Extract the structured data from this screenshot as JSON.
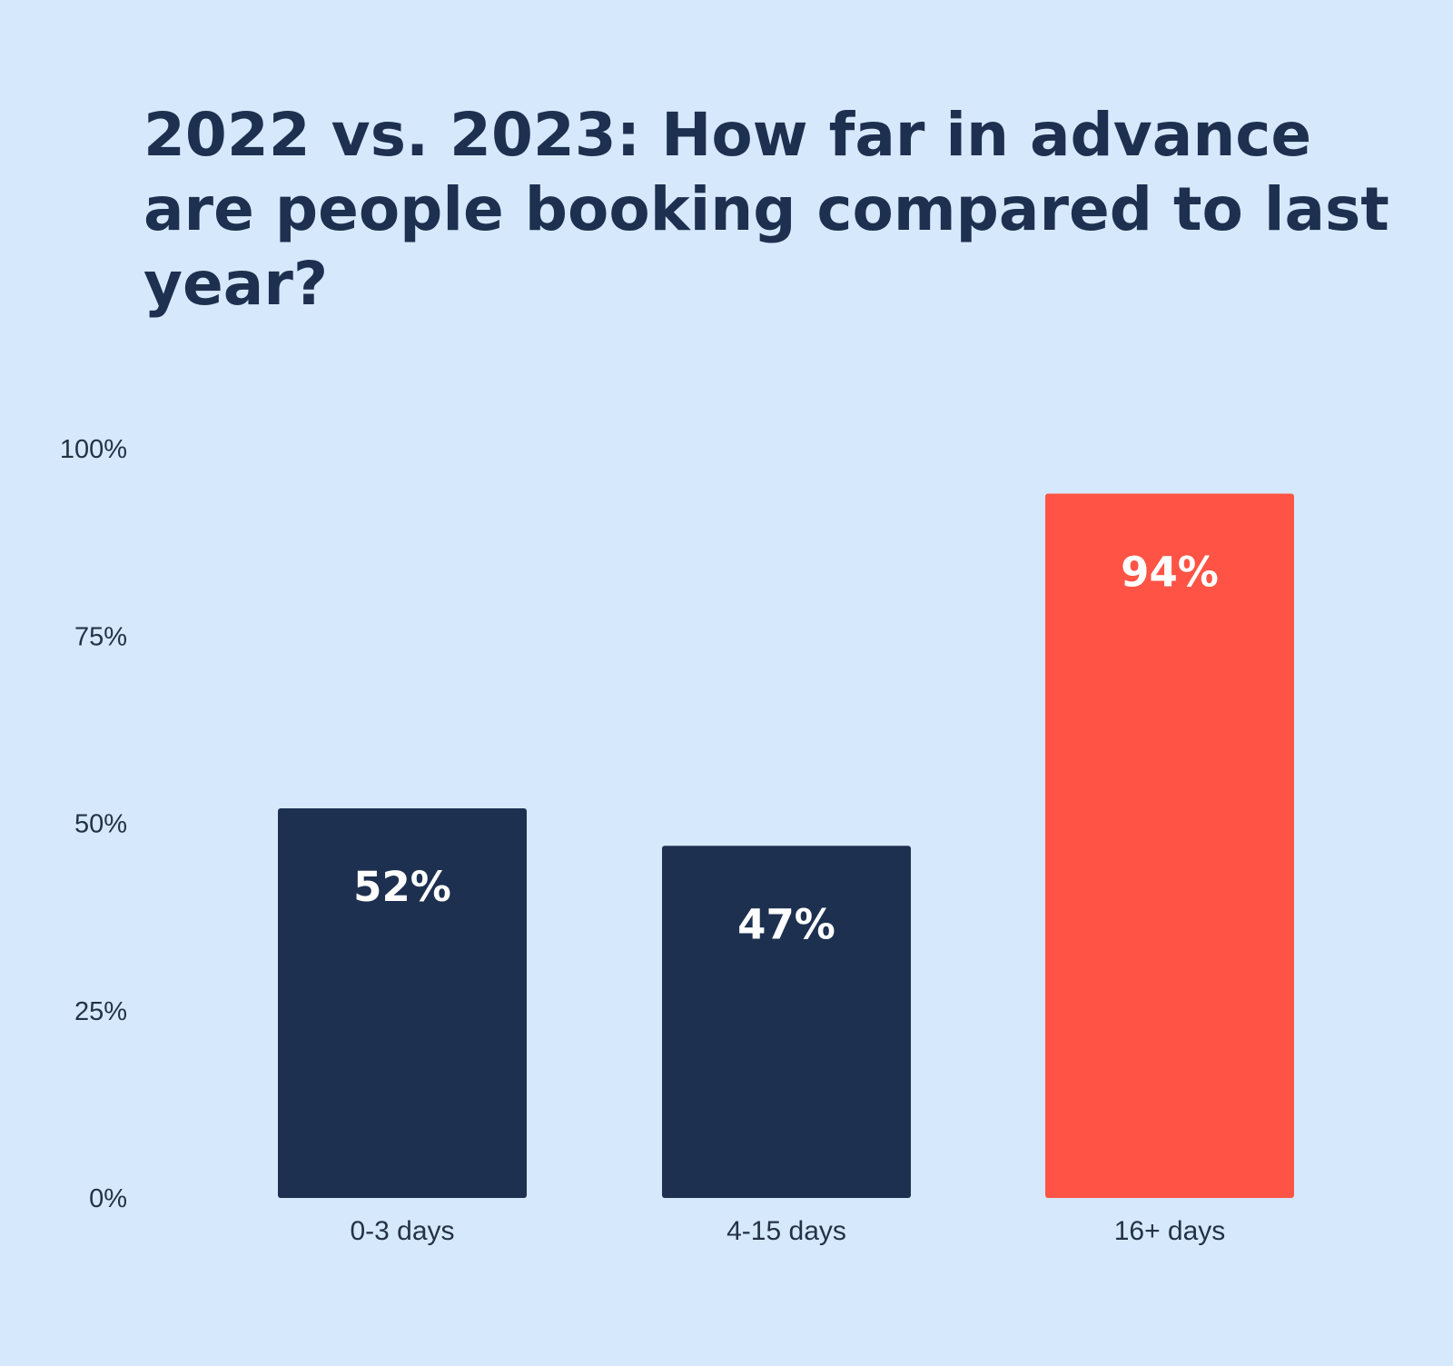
{
  "chart_data": {
    "type": "bar",
    "title": "2022 vs. 2023: How far in advance are people booking compared to last year?",
    "categories": [
      "0-3 days",
      "4-15 days",
      "16+ days"
    ],
    "values": [
      52,
      47,
      94
    ],
    "value_labels": [
      "52%",
      "47%",
      "94%"
    ],
    "ylim": [
      0,
      100
    ],
    "yticks": [
      0,
      25,
      50,
      75,
      100
    ],
    "ytick_labels": [
      "0%",
      "25%",
      "50%",
      "75%",
      "100%"
    ],
    "xlabel": "",
    "ylabel": "",
    "grid": false,
    "legend": "none",
    "colors": {
      "default_bar": "#1e3050",
      "highlight_bar": "#ff5445",
      "background": "#d6e9fc"
    },
    "highlight_index": 2
  }
}
